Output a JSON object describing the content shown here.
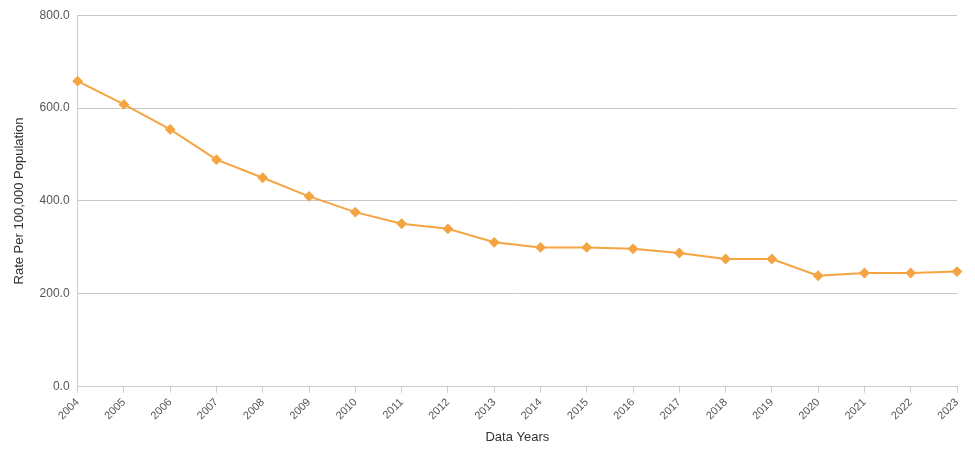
{
  "chart_data": {
    "type": "line",
    "x_label": "Data Years",
    "y_label": "Rate Per 100,000 Population",
    "categories": [
      "2004",
      "2005",
      "2006",
      "2007",
      "2008",
      "2009",
      "2010",
      "2011",
      "2012",
      "2013",
      "2014",
      "2015",
      "2016",
      "2017",
      "2018",
      "2019",
      "2020",
      "2021",
      "2022",
      "2023"
    ],
    "values": [
      658,
      608,
      554,
      489,
      450,
      410,
      376,
      351,
      340,
      311,
      300,
      300,
      297,
      288,
      275,
      275,
      239,
      245,
      245,
      248
    ],
    "color": "#f5a442",
    "marker": "diamond",
    "ylim": [
      0,
      800
    ],
    "yticks": [
      {
        "value": 0,
        "label": "0.0"
      },
      {
        "value": 200,
        "label": "200.0"
      },
      {
        "value": 400,
        "label": "400.0"
      },
      {
        "value": 600,
        "label": "600.0"
      },
      {
        "value": 800,
        "label": "800.0"
      }
    ],
    "grid": true
  }
}
